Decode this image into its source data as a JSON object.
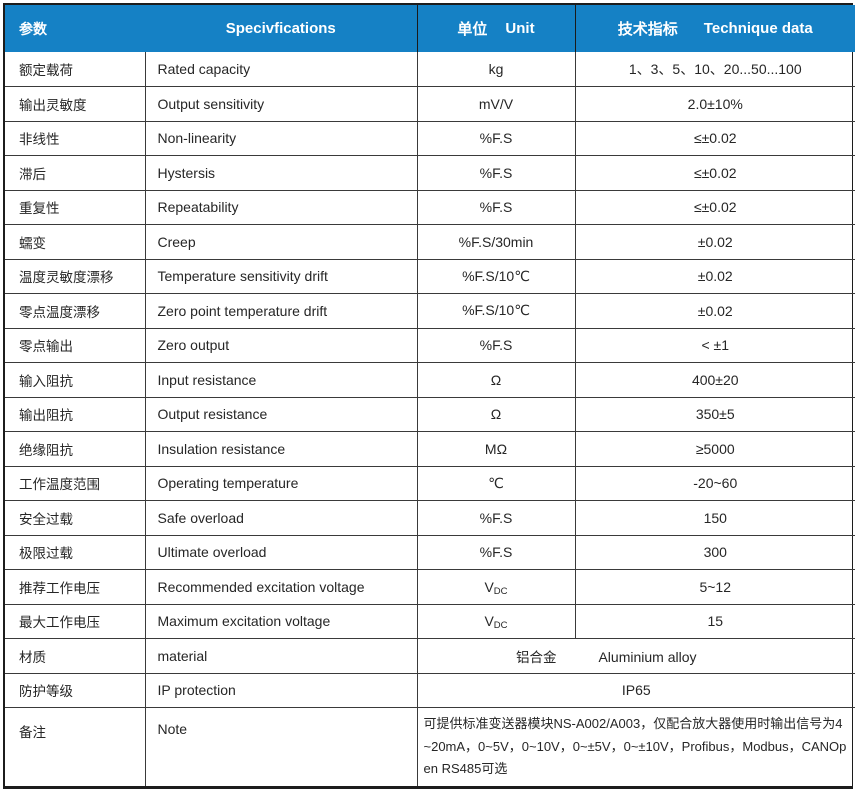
{
  "header": {
    "col1_cn": "参数",
    "col2_en": "Specivfications",
    "col3_cn": "单位",
    "col3_en": "Unit",
    "col4_cn": "技术指标",
    "col4_en": "Technique data"
  },
  "colors": {
    "header_bg": "#1581c5",
    "header_text": "#ffffff",
    "grid_line": "#3a3a3a",
    "outer_border": "#1c1c1c",
    "body_text": "#262626"
  },
  "rows": [
    {
      "cn": "额定载荷",
      "en": "Rated capacity",
      "unit": "kg",
      "value": "1、3、5、10、20...50...100"
    },
    {
      "cn": "输出灵敏度",
      "en": "Output sensitivity",
      "unit": "mV/V",
      "value": "2.0±10%"
    },
    {
      "cn": "非线性",
      "en": "Non-linearity",
      "unit": "%F.S",
      "value": "≤±0.02"
    },
    {
      "cn": "滞后",
      "en": "Hystersis",
      "unit": "%F.S",
      "value": "≤±0.02"
    },
    {
      "cn": "重复性",
      "en": "Repeatability",
      "unit": "%F.S",
      "value": "≤±0.02"
    },
    {
      "cn": "蠕变",
      "en": "Creep",
      "unit": "%F.S/30min",
      "value": "±0.02"
    },
    {
      "cn": "温度灵敏度漂移",
      "en": "Temperature sensitivity drift",
      "unit": "%F.S/10℃",
      "value": "±0.02"
    },
    {
      "cn": "零点温度漂移",
      "en": "Zero point temperature drift",
      "unit": "%F.S/10℃",
      "value": "±0.02"
    },
    {
      "cn": "零点输出",
      "en": "Zero output",
      "unit": "%F.S",
      "value": "< ±1"
    },
    {
      "cn": "输入阻抗",
      "en": "Input resistance",
      "unit": "Ω",
      "value": "400±20"
    },
    {
      "cn": "输出阻抗",
      "en": "Output resistance",
      "unit": "Ω",
      "value": "350±5"
    },
    {
      "cn": "绝缘阻抗",
      "en": "Insulation resistance",
      "unit": "MΩ",
      "value": "≥5000"
    },
    {
      "cn": "工作温度范围",
      "en": "Operating temperature",
      "unit": "℃",
      "value": "-20~60"
    },
    {
      "cn": "安全过载",
      "en": "Safe overload",
      "unit": "%F.S",
      "value": "150"
    },
    {
      "cn": "极限过载",
      "en": "Ultimate overload",
      "unit": "%F.S",
      "value": "300"
    },
    {
      "cn": "推荐工作电压",
      "en": "Recommended excitation voltage",
      "unit": "V",
      "unit_sub": "DC",
      "value": "5~12"
    },
    {
      "cn": "最大工作电压",
      "en": "Maximum excitation voltage",
      "unit": "V",
      "unit_sub": "DC",
      "value": "15"
    },
    {
      "cn": "材质",
      "en": "material",
      "merged": true,
      "value_cn": "铝合金",
      "value_en": "Aluminium alloy"
    },
    {
      "cn": "防护等级",
      "en": "IP protection",
      "merged": true,
      "value": "IP65"
    },
    {
      "cn": "备注",
      "en": "Note",
      "merged": true,
      "note": true,
      "value": "可提供标准变送器模块NS-A002/A003，仅配合放大器使用时输出信号为4~20mA，0~5V，0~10V，0~±5V，0~±10V，Profibus，Modbus，CANOpen  RS485可选"
    }
  ]
}
